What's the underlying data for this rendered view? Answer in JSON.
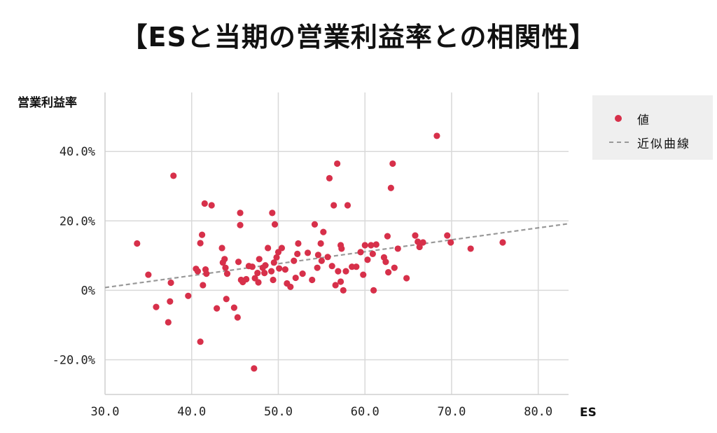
{
  "title": "【ESと当期の営業利益率との相関性】",
  "legend": {
    "marker_label": "値",
    "line_label": "近似曲線"
  },
  "colors": {
    "points": "#d7304a",
    "trend": "#999999",
    "grid": "#d9d9d9"
  },
  "chart_data": {
    "type": "scatter",
    "xlabel": "ES",
    "ylabel": "営業利益率",
    "xlim": [
      30,
      83.5
    ],
    "ylim": [
      -30,
      57
    ],
    "x_ticks": [
      30,
      40,
      50,
      60,
      70,
      80
    ],
    "x_tick_labels": [
      "30.0",
      "40.0",
      "50.0",
      "60.0",
      "70.0",
      "80.0"
    ],
    "y_ticks": [
      -20,
      0,
      20,
      40
    ],
    "y_tick_labels": [
      "-20.0%",
      "0%",
      "20.0%",
      "40.0%"
    ],
    "grid": true,
    "legend_position": "right",
    "trendline": {
      "type": "linear",
      "x": [
        30,
        83.5
      ],
      "y": [
        0.8,
        19.2
      ]
    },
    "series": [
      {
        "name": "値",
        "points": [
          [
            33.7,
            13.5
          ],
          [
            35.0,
            4.5
          ],
          [
            35.9,
            -4.8
          ],
          [
            37.3,
            -9.2
          ],
          [
            37.5,
            -3.2
          ],
          [
            37.6,
            2.2
          ],
          [
            37.9,
            33.0
          ],
          [
            39.6,
            -1.6
          ],
          [
            40.5,
            6.2
          ],
          [
            40.7,
            5.5
          ],
          [
            41.0,
            -14.8
          ],
          [
            41.0,
            13.6
          ],
          [
            41.2,
            16.0
          ],
          [
            41.3,
            1.5
          ],
          [
            41.5,
            25.0
          ],
          [
            41.6,
            6.0
          ],
          [
            41.7,
            4.8
          ],
          [
            42.3,
            24.5
          ],
          [
            42.9,
            -5.2
          ],
          [
            43.5,
            12.2
          ],
          [
            43.6,
            8.0
          ],
          [
            43.8,
            9.0
          ],
          [
            43.9,
            6.5
          ],
          [
            44.0,
            -2.5
          ],
          [
            44.1,
            4.8
          ],
          [
            44.9,
            -5.0
          ],
          [
            45.3,
            -7.8
          ],
          [
            45.4,
            8.2
          ],
          [
            45.6,
            22.3
          ],
          [
            45.6,
            18.8
          ],
          [
            45.7,
            3.0
          ],
          [
            45.9,
            2.4
          ],
          [
            46.3,
            3.2
          ],
          [
            46.6,
            7.0
          ],
          [
            47.0,
            6.8
          ],
          [
            47.2,
            -22.5
          ],
          [
            47.3,
            3.5
          ],
          [
            47.6,
            5.0
          ],
          [
            47.7,
            2.3
          ],
          [
            47.8,
            9.0
          ],
          [
            48.2,
            6.5
          ],
          [
            48.4,
            5.0
          ],
          [
            48.5,
            7.2
          ],
          [
            48.8,
            12.2
          ],
          [
            49.2,
            5.5
          ],
          [
            49.3,
            22.3
          ],
          [
            49.4,
            3.0
          ],
          [
            49.5,
            8.0
          ],
          [
            49.6,
            19.0
          ],
          [
            49.8,
            9.5
          ],
          [
            50.0,
            11.0
          ],
          [
            50.1,
            6.3
          ],
          [
            50.4,
            12.2
          ],
          [
            50.8,
            6.0
          ],
          [
            51.0,
            2.0
          ],
          [
            51.4,
            1.0
          ],
          [
            51.8,
            8.5
          ],
          [
            52.0,
            3.6
          ],
          [
            52.2,
            10.5
          ],
          [
            52.3,
            13.5
          ],
          [
            52.8,
            4.8
          ],
          [
            53.4,
            10.8
          ],
          [
            53.9,
            3.0
          ],
          [
            54.2,
            19.0
          ],
          [
            54.5,
            6.5
          ],
          [
            54.6,
            10.2
          ],
          [
            54.9,
            13.5
          ],
          [
            55.0,
            8.5
          ],
          [
            55.2,
            16.8
          ],
          [
            55.7,
            9.6
          ],
          [
            55.9,
            32.3
          ],
          [
            56.2,
            7.0
          ],
          [
            56.4,
            24.5
          ],
          [
            56.6,
            1.5
          ],
          [
            56.8,
            36.5
          ],
          [
            56.9,
            5.5
          ],
          [
            57.2,
            2.5
          ],
          [
            57.2,
            13.0
          ],
          [
            57.3,
            12.0
          ],
          [
            57.5,
            0.0
          ],
          [
            57.8,
            5.5
          ],
          [
            58.0,
            24.5
          ],
          [
            58.5,
            6.8
          ],
          [
            59.0,
            6.8
          ],
          [
            59.5,
            11.0
          ],
          [
            59.8,
            4.5
          ],
          [
            60.0,
            13.0
          ],
          [
            60.3,
            8.8
          ],
          [
            60.7,
            13.0
          ],
          [
            60.9,
            10.5
          ],
          [
            61.0,
            0.0
          ],
          [
            61.3,
            13.2
          ],
          [
            62.2,
            9.5
          ],
          [
            62.4,
            8.2
          ],
          [
            62.6,
            15.6
          ],
          [
            62.7,
            5.2
          ],
          [
            63.0,
            29.5
          ],
          [
            63.2,
            36.5
          ],
          [
            63.4,
            6.5
          ],
          [
            63.8,
            12.0
          ],
          [
            64.8,
            3.5
          ],
          [
            65.8,
            15.8
          ],
          [
            66.1,
            14.0
          ],
          [
            66.3,
            12.5
          ],
          [
            66.7,
            13.8
          ],
          [
            69.5,
            15.8
          ],
          [
            69.9,
            13.8
          ],
          [
            72.2,
            12.0
          ],
          [
            75.9,
            13.8
          ],
          [
            68.3,
            44.5
          ]
        ]
      }
    ]
  }
}
